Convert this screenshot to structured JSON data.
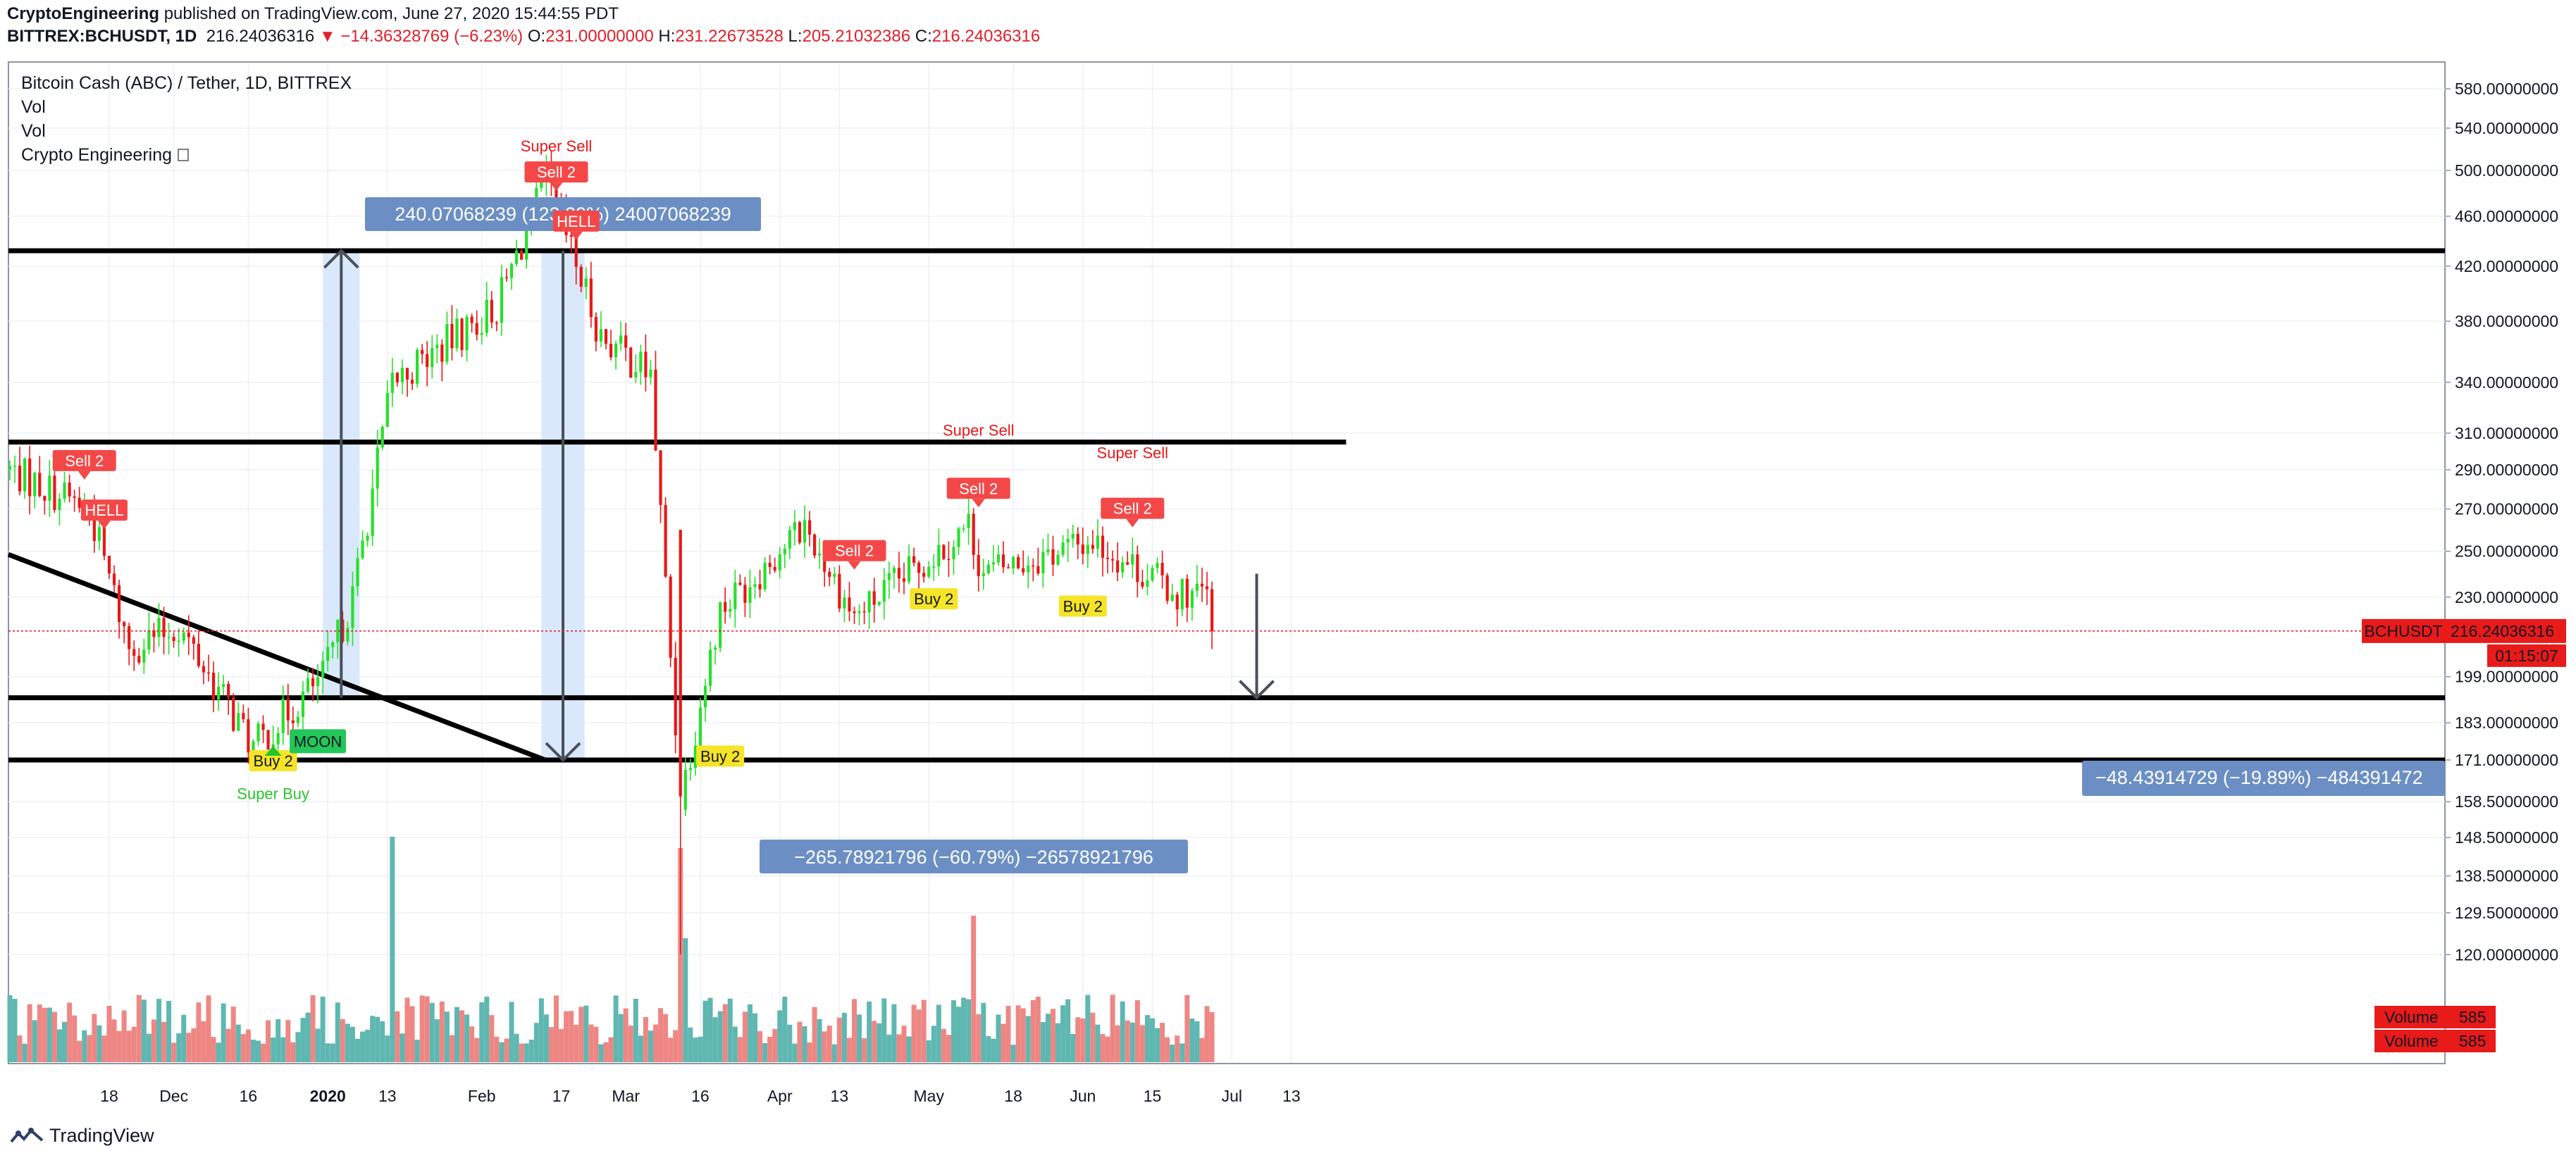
{
  "header": {
    "publisher": "CryptoEngineering",
    "published_text": "published on TradingView.com, June 27, 2020 15:44:55 PDT",
    "symbol": "BITTREX:BCHUSDT, 1D",
    "last": "216.24036316",
    "change": "−14.36328769 (−6.23%)",
    "o_label": "O:",
    "o": "231.00000000",
    "h_label": "H:",
    "h": "231.22673528",
    "l_label": "L:",
    "l": "205.21032386",
    "c_label": "C:",
    "c": "216.24036316"
  },
  "legend": {
    "title": "Bitcoin Cash (ABC) / Tether, 1D, BITTREX",
    "lines": [
      "Vol",
      "Vol",
      "Crypto Engineering"
    ]
  },
  "footer": {
    "brand": "TradingView"
  },
  "colors": {
    "up": "#26e02a",
    "down": "#e81717",
    "vol_up": "#5fb7b1",
    "vol_down": "#ee8784",
    "measure_bg": "#d9e9fb",
    "anno_box": "#6b8fc4",
    "price_label": "#e81a1a"
  },
  "chart_data": {
    "type": "candlestick",
    "title": "Bitcoin Cash (ABC) / Tether, 1D, BITTREX",
    "x_tick_labels": [
      "18",
      "Dec",
      "16",
      "2020",
      "13",
      "Feb",
      "17",
      "Mar",
      "16",
      "Apr",
      "13",
      "May",
      "18",
      "Jun",
      "15",
      "Jul",
      "13"
    ],
    "y_tick_labels": [
      "580.00000000",
      "540.00000000",
      "500.00000000",
      "460.00000000",
      "420.00000000",
      "380.00000000",
      "340.00000000",
      "310.00000000",
      "290.00000000",
      "270.00000000",
      "250.00000000",
      "230.00000000",
      "199.00000000",
      "183.00000000",
      "171.00000000",
      "158.50000000",
      "148.50000000",
      "138.50000000",
      "129.50000000",
      "120.00000000"
    ],
    "y_axis_scale": "log",
    "horizontal_levels": [
      432,
      305,
      191.5,
      171
    ],
    "trendline": {
      "from": {
        "date": "2019-10-29",
        "price": 255
      },
      "to": {
        "date": "2020-02-01",
        "price": 171
      }
    },
    "measure_annotations": [
      {
        "label": "240.07068239 (123.20%) 24007068239",
        "direction": "up"
      },
      {
        "label": "−265.78921796 (−60.79%) −26578921796",
        "direction": "down"
      },
      {
        "label": "−48.43914729 (−19.89%) −484391472",
        "direction": "down"
      }
    ],
    "signals": [
      {
        "text": "Sell 2",
        "type": "sell"
      },
      {
        "text": "HELL",
        "type": "sell"
      },
      {
        "text": "Buy 2",
        "type": "buy"
      },
      {
        "text": "Super Buy",
        "type": "buy-text"
      },
      {
        "text": "MOON",
        "type": "moon"
      },
      {
        "text": "Super Sell",
        "type": "sell-text"
      },
      {
        "text": "Sell 2",
        "type": "sell"
      },
      {
        "text": "HELL",
        "type": "sell"
      },
      {
        "text": "Buy 2",
        "type": "buy"
      },
      {
        "text": "Sell 2",
        "type": "sell"
      },
      {
        "text": "Buy 2",
        "type": "buy"
      },
      {
        "text": "Super Sell",
        "type": "sell-text"
      },
      {
        "text": "Sell 2",
        "type": "sell"
      },
      {
        "text": "Buy 2",
        "type": "buy"
      },
      {
        "text": "Super Sell",
        "type": "sell-text"
      },
      {
        "text": "Sell 2",
        "type": "sell"
      }
    ],
    "price_labels": [
      {
        "text": "BCHUSDT",
        "value": "216.24036316"
      },
      {
        "text": "",
        "value": "01:15:07"
      },
      {
        "text": "Volume",
        "value": "585"
      },
      {
        "text": "Volume",
        "value": "585"
      }
    ],
    "ohlc_keypoints": [
      {
        "date": "2019-10-29",
        "close": 290
      },
      {
        "date": "2019-11-14",
        "close": 270
      },
      {
        "date": "2019-11-22",
        "close": 210
      },
      {
        "date": "2019-12-02",
        "close": 218
      },
      {
        "date": "2019-12-17",
        "close": 175
      },
      {
        "date": "2019-12-31",
        "close": 199
      },
      {
        "date": "2020-01-06",
        "close": 230
      },
      {
        "date": "2020-01-14",
        "close": 340
      },
      {
        "date": "2020-02-04",
        "close": 390
      },
      {
        "date": "2020-02-14",
        "close": 490
      },
      {
        "date": "2020-02-25",
        "close": 370
      },
      {
        "date": "2020-03-06",
        "close": 345
      },
      {
        "date": "2020-03-12",
        "close": 160
      },
      {
        "date": "2020-03-20",
        "close": 225
      },
      {
        "date": "2020-04-06",
        "close": 262
      },
      {
        "date": "2020-04-16",
        "close": 222
      },
      {
        "date": "2020-05-09",
        "close": 262
      },
      {
        "date": "2020-05-12",
        "close": 240
      },
      {
        "date": "2020-06-03",
        "close": 255
      },
      {
        "date": "2020-06-20",
        "close": 232
      },
      {
        "date": "2020-06-26",
        "close": 231
      },
      {
        "date": "2020-06-27",
        "close": 216.24
      }
    ]
  }
}
